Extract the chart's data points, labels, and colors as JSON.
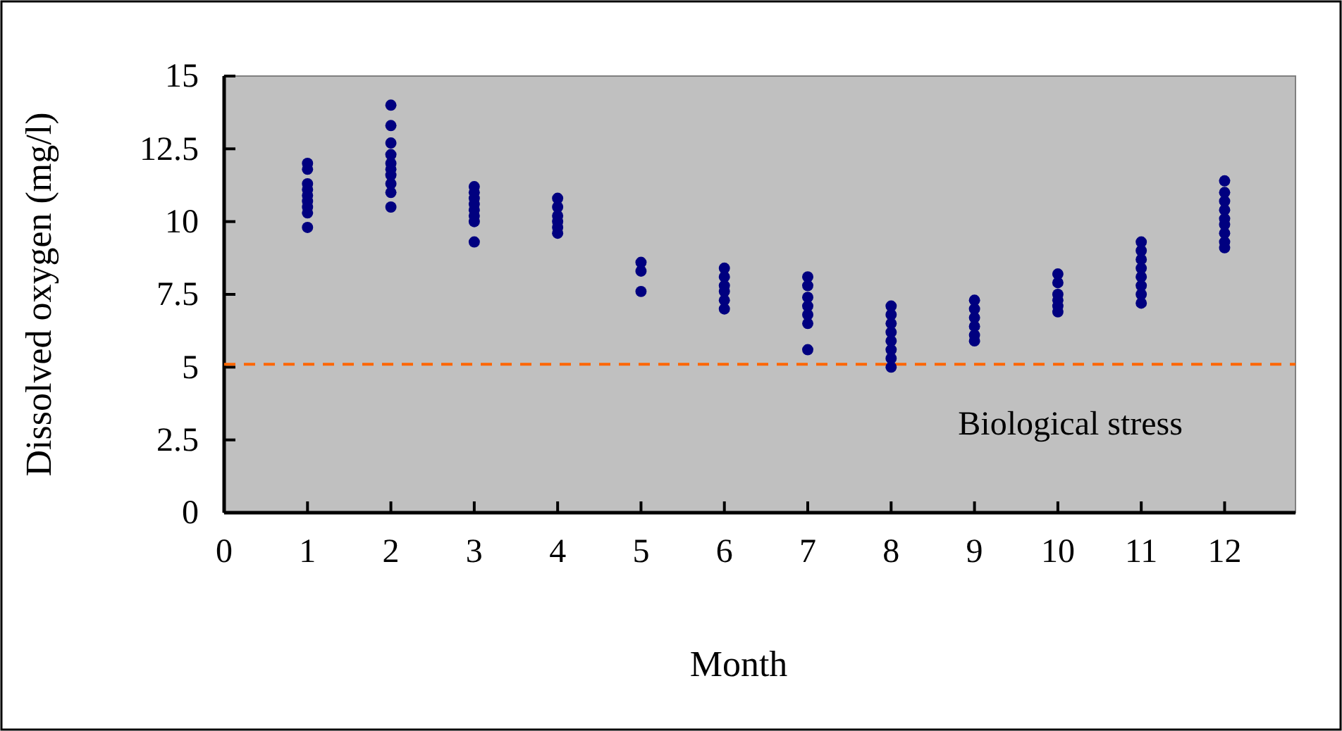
{
  "chart_data": {
    "type": "scatter",
    "xlabel": "Month",
    "ylabel": "Dissolved oxygen (mg/l)",
    "x": [
      1,
      1,
      1,
      1,
      1,
      1,
      1,
      1,
      1,
      2,
      2,
      2,
      2,
      2,
      2,
      2,
      2,
      2,
      2,
      3,
      3,
      3,
      3,
      3,
      3,
      3,
      3,
      4,
      4,
      4,
      4,
      4,
      4,
      5,
      5,
      5,
      6,
      6,
      6,
      6,
      6,
      6,
      7,
      7,
      7,
      7,
      7,
      7,
      7,
      8,
      8,
      8,
      8,
      8,
      8,
      8,
      8,
      9,
      9,
      9,
      9,
      9,
      9,
      10,
      10,
      10,
      10,
      10,
      10,
      11,
      11,
      11,
      11,
      11,
      11,
      11,
      11,
      12,
      12,
      12,
      12,
      12,
      12,
      12,
      12,
      12
    ],
    "values": [
      12.0,
      11.8,
      11.3,
      11.1,
      10.9,
      10.7,
      10.5,
      10.3,
      9.8,
      14.0,
      13.3,
      12.7,
      12.3,
      12.0,
      11.8,
      11.6,
      11.3,
      11.0,
      10.5,
      11.2,
      11.0,
      10.8,
      10.6,
      10.4,
      10.2,
      10.0,
      9.3,
      10.8,
      10.5,
      10.2,
      10.0,
      9.8,
      9.6,
      8.6,
      8.3,
      7.6,
      8.4,
      8.1,
      7.8,
      7.6,
      7.3,
      7.0,
      8.1,
      7.8,
      7.4,
      7.1,
      6.8,
      6.5,
      5.6,
      7.1,
      6.8,
      6.5,
      6.2,
      5.9,
      5.6,
      5.3,
      5.0,
      7.3,
      7.0,
      6.7,
      6.4,
      6.1,
      5.9,
      8.2,
      7.9,
      7.5,
      7.3,
      7.1,
      6.9,
      9.3,
      9.0,
      8.7,
      8.4,
      8.1,
      7.8,
      7.5,
      7.2,
      11.4,
      11.0,
      10.7,
      10.4,
      10.1,
      9.9,
      9.6,
      9.3,
      9.1
    ],
    "color": "#000080",
    "marker": "circle",
    "xlim": [
      0,
      12.85
    ],
    "xticks": [
      0,
      1,
      2,
      3,
      4,
      5,
      6,
      7,
      8,
      9,
      10,
      11,
      12
    ],
    "ylim": [
      0,
      15
    ],
    "yticks": [
      0,
      2.5,
      5,
      7.5,
      10,
      12.5,
      15
    ],
    "grid": false,
    "ref_lines": [
      {
        "axis": "y",
        "value": 5.1,
        "label": "Biological stress",
        "color": "#ff6600",
        "line_style": "dashed"
      }
    ]
  }
}
